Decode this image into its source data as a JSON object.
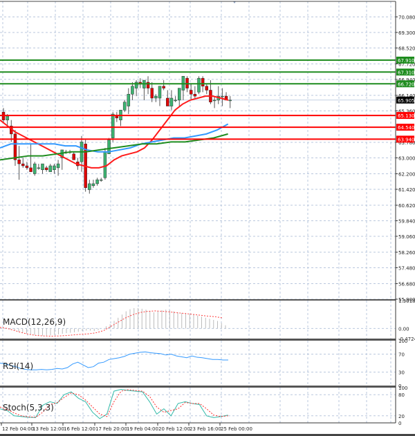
{
  "chart_data": [
    {
      "type": "candlestick",
      "title": "",
      "pane": "main",
      "ylim": [
        55.9,
        70.86
      ],
      "y_ticks": [
        "70.080",
        "69.300",
        "68.520",
        "67.720",
        "66.940",
        "66.140",
        "65.360",
        "63.780",
        "63.000",
        "62.200",
        "61.420",
        "60.620",
        "59.840",
        "59.060",
        "58.260",
        "57.480",
        "56.680",
        "55.900"
      ],
      "current_price": "65.905",
      "x_tick_labels": [
        "12 Feb 04:00",
        "13 Feb 12:00",
        "16 Feb 12:00",
        "17 Feb 20:00",
        "19 Feb 04:00",
        "20 Feb 12:00",
        "23 Feb 16:00",
        "25 Feb 00:00"
      ],
      "grid": true,
      "levels": [
        {
          "value": "67.910",
          "color": "#1e8c1e",
          "kind": "resistance"
        },
        {
          "value": "67.310",
          "color": "#1e8c1e",
          "kind": "resistance"
        },
        {
          "value": "66.720",
          "color": "#1e8c1e",
          "kind": "resistance"
        },
        {
          "value": "65.130",
          "color": "#ff0000",
          "kind": "support"
        },
        {
          "value": "64.540",
          "color": "#ff0000",
          "kind": "support"
        },
        {
          "value": "63.940",
          "color": "#ff0000",
          "kind": "support"
        }
      ],
      "candles": [
        [
          65.3,
          65.5,
          64.8,
          64.9
        ],
        [
          64.9,
          65.2,
          64.6,
          65.1
        ],
        [
          64.6,
          64.9,
          63.8,
          64.2
        ],
        [
          64.2,
          64.4,
          62.6,
          62.9
        ],
        [
          62.9,
          63.6,
          61.9,
          62.7
        ],
        [
          62.7,
          63.0,
          62.5,
          62.6
        ],
        [
          62.6,
          62.8,
          62.4,
          62.5
        ],
        [
          62.5,
          63.7,
          62.3,
          62.3
        ],
        [
          62.2,
          62.8,
          62.1,
          62.7
        ],
        [
          62.5,
          62.7,
          62.4,
          62.5
        ],
        [
          62.4,
          62.7,
          62.2,
          62.7
        ],
        [
          62.5,
          62.6,
          62.3,
          62.4
        ],
        [
          62.3,
          62.7,
          62.3,
          62.6
        ],
        [
          62.4,
          62.7,
          62.2,
          62.6
        ],
        [
          62.5,
          62.9,
          62.1,
          62.7
        ],
        [
          63.0,
          63.4,
          62.4,
          63.4
        ],
        [
          63.3,
          63.4,
          63.2,
          63.3
        ],
        [
          63.3,
          63.4,
          63.2,
          63.3
        ],
        [
          63.2,
          63.3,
          62.9,
          62.9
        ],
        [
          62.8,
          63.0,
          62.4,
          62.6
        ],
        [
          62.8,
          64.1,
          62.3,
          63.8
        ],
        [
          63.7,
          63.9,
          61.3,
          61.5
        ],
        [
          61.4,
          61.9,
          61.2,
          61.7
        ],
        [
          61.6,
          61.9,
          61.5,
          61.7
        ],
        [
          61.7,
          62.0,
          61.6,
          61.9
        ],
        [
          61.9,
          62.0,
          61.8,
          61.9
        ],
        [
          62.0,
          63.5,
          61.9,
          63.3
        ],
        [
          63.2,
          64.0,
          63.2,
          63.9
        ],
        [
          64.0,
          65.3,
          63.8,
          65.2
        ],
        [
          65.1,
          65.3,
          64.8,
          65.0
        ],
        [
          64.9,
          65.4,
          64.6,
          65.4
        ],
        [
          65.4,
          65.9,
          65.3,
          65.8
        ],
        [
          65.6,
          66.5,
          65.2,
          66.2
        ],
        [
          66.2,
          66.8,
          65.9,
          66.6
        ],
        [
          66.5,
          66.9,
          66.1,
          66.8
        ],
        [
          66.8,
          67.0,
          66.5,
          66.7
        ],
        [
          66.5,
          66.8,
          65.9,
          66.9
        ],
        [
          66.8,
          67.1,
          66.2,
          66.5
        ],
        [
          66.5,
          66.8,
          65.8,
          66.0
        ],
        [
          66.0,
          66.2,
          65.8,
          66.1
        ],
        [
          66.0,
          66.6,
          65.6,
          66.6
        ],
        [
          66.6,
          66.9,
          66.4,
          66.5
        ],
        [
          66.0,
          66.4,
          65.6,
          65.6
        ],
        [
          65.6,
          66.4,
          65.4,
          66.0
        ],
        [
          65.9,
          66.1,
          65.8,
          65.9
        ],
        [
          65.9,
          66.5,
          65.6,
          66.5
        ],
        [
          66.4,
          67.1,
          65.9,
          67.1
        ],
        [
          67.0,
          67.1,
          66.3,
          66.5
        ],
        [
          66.4,
          66.7,
          65.9,
          66.2
        ],
        [
          66.2,
          66.6,
          66.0,
          66.1
        ],
        [
          66.3,
          67.1,
          66.2,
          67.0
        ],
        [
          67.0,
          67.1,
          66.3,
          66.6
        ],
        [
          66.6,
          66.7,
          66.2,
          66.4
        ],
        [
          66.4,
          66.9,
          65.7,
          65.8
        ],
        [
          65.9,
          66.1,
          65.5,
          65.9
        ],
        [
          65.9,
          66.6,
          65.7,
          66.1
        ],
        [
          66.1,
          66.5,
          65.6,
          66.1
        ],
        [
          66.1,
          66.3,
          65.9,
          65.9
        ],
        [
          65.9,
          66.1,
          65.5,
          65.9
        ]
      ],
      "series": [
        {
          "name": "MA fast (red)",
          "color": "#ff1a1a",
          "values": [
            64.9,
            64.6,
            64.3,
            64.1,
            63.9,
            63.7,
            63.5,
            63.3,
            63.1,
            62.9,
            62.7,
            62.6,
            62.5,
            62.5,
            62.6,
            62.9,
            63.1,
            63.2,
            63.3,
            63.5,
            63.9,
            64.4,
            64.9,
            65.4,
            65.7,
            65.9,
            66.0,
            66.1,
            66.1,
            66.0,
            65.9
          ]
        },
        {
          "name": "MA mid (blue)",
          "color": "#3399ff",
          "values": [
            63.5,
            63.7,
            63.7,
            63.7,
            63.7,
            63.7,
            63.6,
            63.6,
            63.4,
            63.3,
            63.3,
            63.4,
            63.5,
            63.7,
            63.8,
            63.9,
            64.0,
            64.0,
            64.1,
            64.2,
            64.4,
            64.7
          ]
        },
        {
          "name": "MA slow (green)",
          "color": "#1e8c1e",
          "values": [
            62.9,
            63.0,
            63.1,
            63.1,
            63.2,
            63.3,
            63.3,
            63.4,
            63.5,
            63.6,
            63.7,
            63.7,
            63.8,
            63.8,
            63.9,
            64.0,
            64.2
          ]
        }
      ]
    },
    {
      "type": "bar",
      "pane": "macd",
      "title": "MACD(12,26,9)",
      "y_ticks": [
        "1.3018",
        "0.00",
        "-0.4724"
      ],
      "ylim": [
        -0.4724,
        1.3018
      ],
      "histogram": [
        0.05,
        0.02,
        -0.05,
        -0.1,
        -0.15,
        -0.2,
        -0.25,
        -0.28,
        -0.3,
        -0.32,
        -0.33,
        -0.33,
        -0.32,
        -0.3,
        -0.28,
        -0.25,
        -0.22,
        -0.2,
        -0.18,
        -0.15,
        -0.12,
        -0.1,
        -0.1,
        -0.12,
        -0.08,
        0.0,
        0.1,
        0.2,
        0.35,
        0.5,
        0.65,
        0.8,
        0.9,
        0.95,
        0.95,
        0.92,
        0.88,
        0.82,
        0.75,
        0.8,
        0.85,
        0.88,
        0.85,
        0.8,
        0.75,
        0.72,
        0.7,
        0.68,
        0.65,
        0.6,
        0.55,
        0.5,
        0.45,
        0.4,
        0.35,
        0.25,
        0.15
      ],
      "signal": [
        0.05,
        0.0,
        -0.1,
        -0.2,
        -0.28,
        -0.33,
        -0.35,
        -0.36,
        -0.35,
        -0.33,
        -0.3,
        -0.27,
        -0.25,
        -0.2,
        -0.1,
        0.1,
        0.3,
        0.5,
        0.65,
        0.75,
        0.8,
        0.82,
        0.8,
        0.77,
        0.73,
        0.7,
        0.66,
        0.62,
        0.58,
        0.55,
        0.5
      ]
    },
    {
      "type": "line",
      "pane": "rsi",
      "title": "RSI(14)",
      "y_ticks": [
        "100",
        "70",
        "30",
        "0"
      ],
      "ylim": [
        0,
        100
      ],
      "series": [
        {
          "name": "RSI(14)",
          "color": "#3399ff",
          "values": [
            50,
            48,
            45,
            42,
            38,
            36,
            35,
            35,
            36,
            35,
            36,
            38,
            37,
            40,
            48,
            52,
            46,
            40,
            42,
            50,
            52,
            58,
            60,
            62,
            65,
            70,
            72,
            74,
            75,
            73,
            72,
            71,
            68,
            70,
            66,
            64,
            62,
            66,
            63,
            62,
            60,
            58,
            58,
            57,
            57
          ]
        }
      ]
    },
    {
      "type": "line",
      "pane": "stoch",
      "title": "Stoch(5,3,3)",
      "y_ticks": [
        "100",
        "80",
        "20",
        "0"
      ],
      "ylim": [
        0,
        100
      ],
      "series": [
        {
          "name": "%K",
          "color": "#33bbaa",
          "values": [
            40,
            35,
            20,
            18,
            16,
            15,
            50,
            60,
            55,
            80,
            88,
            70,
            60,
            30,
            12,
            25,
            90,
            95,
            92,
            90,
            88,
            60,
            25,
            40,
            20,
            55,
            60,
            55,
            52,
            20,
            15,
            18,
            22
          ]
        },
        {
          "name": "%D",
          "color": "#ff2a2a",
          "values": [
            45,
            38,
            28,
            20,
            17,
            16,
            30,
            52,
            57,
            72,
            85,
            80,
            65,
            45,
            25,
            18,
            60,
            90,
            94,
            92,
            90,
            75,
            45,
            30,
            35,
            40,
            58,
            55,
            55,
            40,
            22,
            18,
            20
          ]
        }
      ]
    }
  ],
  "axes": {
    "main": {
      "label_dark": "65.905"
    }
  }
}
